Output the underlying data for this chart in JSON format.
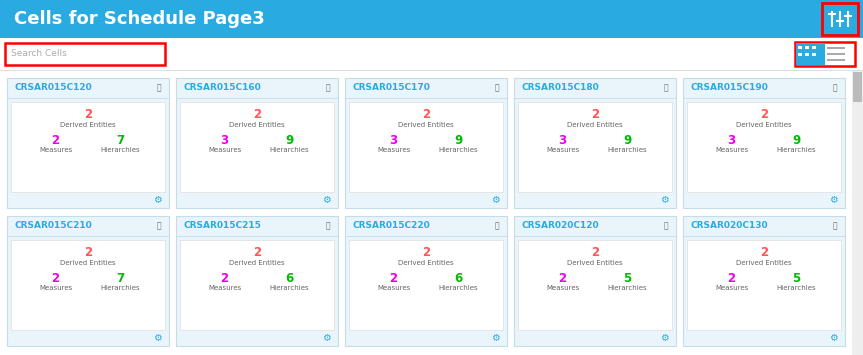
{
  "title": "Cells for Schedule Page3",
  "title_bg": "#29ABE2",
  "title_color": "white",
  "title_fontsize": 13,
  "search_placeholder": "Search Cells",
  "search_border": "#FF0000",
  "header_icon_border": "#FF0000",
  "header_bg": "#29ABE2",
  "body_bg": "#FFFFFF",
  "card_bg": "#F5FBFF",
  "card_border": "#C8E6F5",
  "outer_card_bg": "#EAF5FB",
  "row1_cards": [
    {
      "name": "CRSAR015C120",
      "derived": 2,
      "measures": 2,
      "hierarchies": 7
    },
    {
      "name": "CRSAR015C160",
      "derived": 2,
      "measures": 3,
      "hierarchies": 9
    },
    {
      "name": "CRSAR015C170",
      "derived": 2,
      "measures": 3,
      "hierarchies": 9
    },
    {
      "name": "CRSAR015C180",
      "derived": 2,
      "measures": 3,
      "hierarchies": 9
    },
    {
      "name": "CRSAR015C190",
      "derived": 2,
      "measures": 3,
      "hierarchies": 9
    }
  ],
  "row2_cards": [
    {
      "name": "CRSAR015C210",
      "derived": 2,
      "measures": 2,
      "hierarchies": 7
    },
    {
      "name": "CRSAR015C215",
      "derived": 2,
      "measures": 2,
      "hierarchies": 6
    },
    {
      "name": "CRSAR015C220",
      "derived": 2,
      "measures": 2,
      "hierarchies": 6
    },
    {
      "name": "CRSAR020C120",
      "derived": 2,
      "measures": 2,
      "hierarchies": 5
    },
    {
      "name": "CRSAR020C130",
      "derived": 2,
      "measures": 2,
      "hierarchies": 5
    }
  ],
  "name_color": "#29ABE2",
  "derived_color": "#FF5555",
  "measures_color": "#EE00EE",
  "hierarchies_color": "#00BB00",
  "label_color": "#666666",
  "label_fontsize": 5.0,
  "value_fontsize": 8.5,
  "name_fontsize": 6.5,
  "gear_color": "#29ABE2",
  "active_view_color": "#29ABE2",
  "scrollbar_bg": "#EEEEEE",
  "scrollbar_thumb": "#BBBBBB"
}
